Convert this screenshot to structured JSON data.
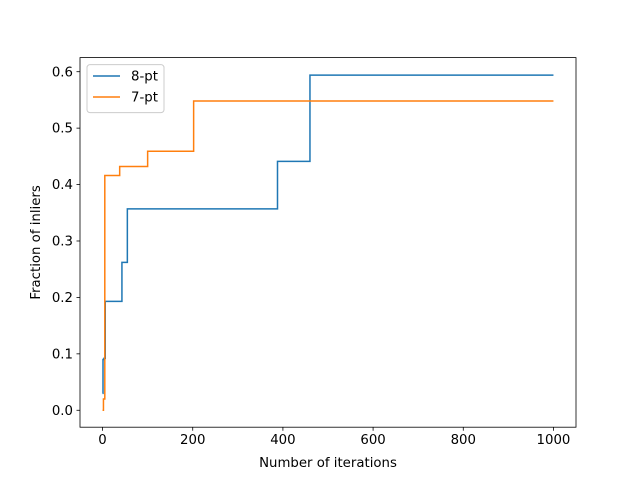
{
  "chart_data": {
    "type": "line",
    "title": "",
    "xlabel": "Number of iterations",
    "ylabel": "Fraction of inliers",
    "xlim": [
      -50,
      1050
    ],
    "ylim": [
      -0.03,
      0.625
    ],
    "xticks": [
      0,
      200,
      400,
      600,
      800,
      1000
    ],
    "xtick_labels": [
      "0",
      "200",
      "400",
      "600",
      "800",
      "1000"
    ],
    "yticks": [
      0.0,
      0.1,
      0.2,
      0.3,
      0.4,
      0.5,
      0.6
    ],
    "ytick_labels": [
      "0.0",
      "0.1",
      "0.2",
      "0.3",
      "0.4",
      "0.5",
      "0.6"
    ],
    "grid": false,
    "legend_position": "top-left",
    "step": "post",
    "series": [
      {
        "name": "8-pt",
        "color": "#1f77b4",
        "x": [
          0,
          1,
          3,
          6,
          43,
          50,
          55,
          388,
          460,
          1000
        ],
        "y": [
          0.03,
          0.09,
          0.092,
          0.193,
          0.262,
          0.262,
          0.357,
          0.441,
          0.594,
          0.594
        ]
      },
      {
        "name": "7-pt",
        "color": "#ff7f0e",
        "x": [
          0,
          2,
          5,
          38,
          100,
          202,
          1000
        ],
        "y": [
          0.0,
          0.02,
          0.416,
          0.432,
          0.459,
          0.548,
          0.548
        ]
      }
    ]
  }
}
